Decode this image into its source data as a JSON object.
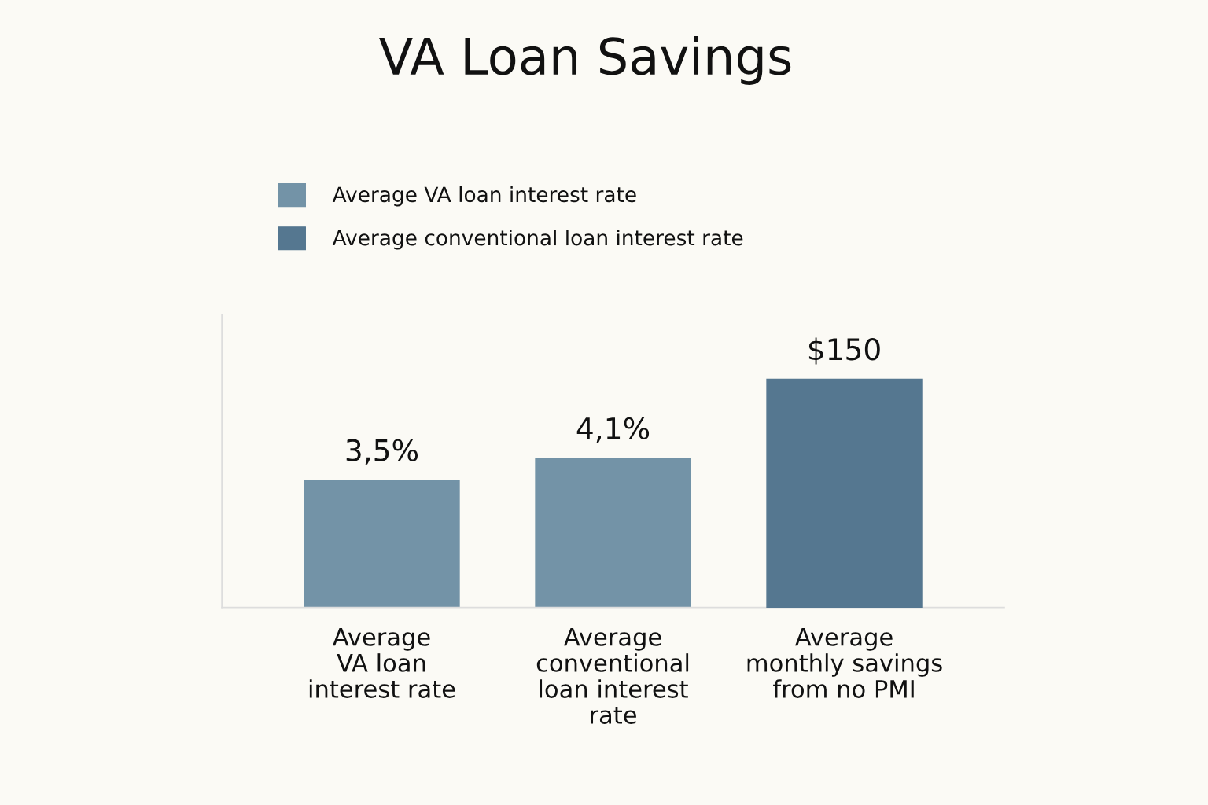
{
  "chart_data": {
    "type": "bar",
    "title": "VA Loan Savings",
    "categories": [
      "Average\nVA loan\ninterest rate",
      "Average\nconventional\nloan interest\nrate",
      "Average\nmonthly savings\nfrom no PMI"
    ],
    "series": [
      {
        "name": "Average VA loan interest rate",
        "color": "#7393a7",
        "values": [
          3.5,
          4.1,
          null
        ],
        "value_labels": [
          "3,5%",
          "4,1%",
          null
        ]
      },
      {
        "name": "Average conventional loan interest rate",
        "color": "#557790",
        "values": [
          null,
          null,
          150
        ],
        "value_labels": [
          null,
          null,
          "$150"
        ],
        "axis": "y2"
      }
    ],
    "tick_labels": "x",
    "legend": "top",
    "grid": false
  }
}
